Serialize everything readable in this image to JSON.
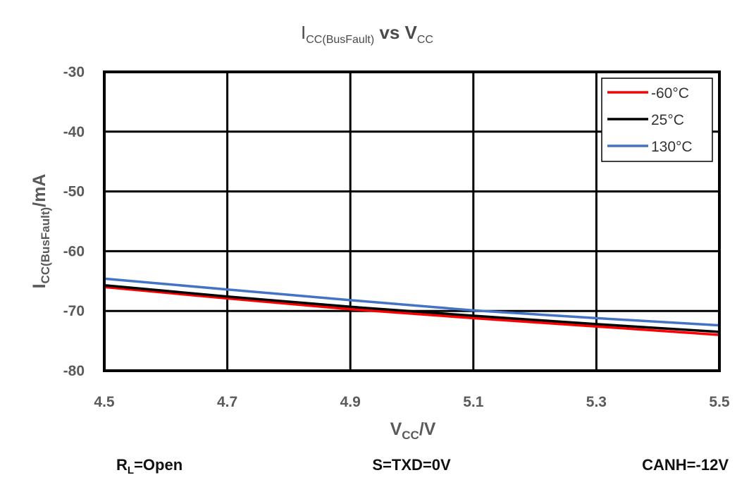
{
  "chart_data": {
    "type": "line",
    "title": {
      "main": "I",
      "main_sub": "CC(BusFault)",
      "mid": " vs V",
      "tail_sub": "CC"
    },
    "xlabel": {
      "main": "V",
      "sub": "CC",
      "tail": "/V"
    },
    "ylabel": {
      "main": "I",
      "sub": "CC(BusFault)",
      "tail": "/mA"
    },
    "xlim": [
      4.5,
      5.5
    ],
    "ylim": [
      -80,
      -30
    ],
    "xticks": [
      "4.5",
      "4.7",
      "4.9",
      "5.1",
      "5.3",
      "5.5"
    ],
    "yticks": [
      "-30",
      "-40",
      "-50",
      "-60",
      "-70",
      "-80"
    ],
    "grid": true,
    "legend_position": "top-right",
    "series": [
      {
        "name": "-60°C",
        "color": "#ff0000",
        "x": [
          4.5,
          4.7,
          4.9,
          5.1,
          5.3,
          5.5
        ],
        "y": [
          -66.0,
          -67.9,
          -69.7,
          -71.2,
          -72.6,
          -74.0
        ]
      },
      {
        "name": "25°C",
        "color": "#000000",
        "x": [
          4.5,
          4.7,
          4.9,
          5.1,
          5.3,
          5.5
        ],
        "y": [
          -65.7,
          -67.6,
          -69.3,
          -70.8,
          -72.2,
          -73.5
        ]
      },
      {
        "name": "130°C",
        "color": "#4472c4",
        "x": [
          4.5,
          4.7,
          4.9,
          5.1,
          5.3,
          5.5
        ],
        "y": [
          -64.6,
          -66.4,
          -68.2,
          -69.9,
          -71.2,
          -72.4
        ]
      }
    ],
    "annotations": {
      "rl": {
        "main": "R",
        "sub": "L",
        "tail": "=Open"
      },
      "s_txd": "S=TXD=0V",
      "canh": "CANH=-12V"
    }
  }
}
